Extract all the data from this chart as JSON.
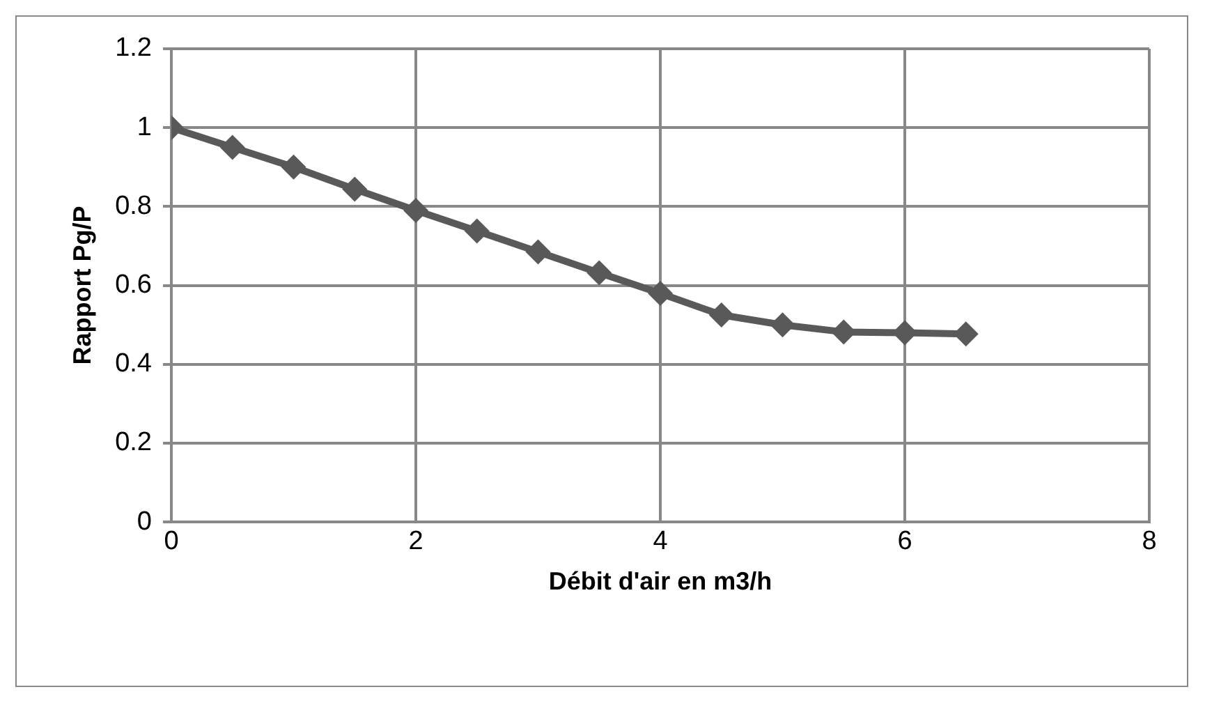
{
  "chart_data": {
    "type": "line",
    "xlabel": "Débit d'air en m3/h",
    "ylabel": "Rapport Pg/P",
    "x": [
      0,
      0.5,
      1,
      1.5,
      2,
      2.5,
      3,
      3.5,
      4,
      4.5,
      5,
      5.5,
      6,
      6.5
    ],
    "series": [
      {
        "color": "#595959",
        "values": [
          1.0,
          0.95,
          0.9,
          0.844,
          0.79,
          0.738,
          0.685,
          0.632,
          0.58,
          0.525,
          0.5,
          0.482,
          0.48,
          0.477
        ]
      }
    ],
    "xlim": [
      0,
      8
    ],
    "xticks": [
      0,
      2,
      4,
      6,
      8
    ],
    "ylim": [
      0,
      1.2
    ],
    "yticks": [
      0,
      0.2,
      0.4,
      0.6,
      0.8,
      1,
      1.2
    ],
    "grid": true,
    "legend": false,
    "marker": "diamond",
    "line_style": "solid"
  }
}
